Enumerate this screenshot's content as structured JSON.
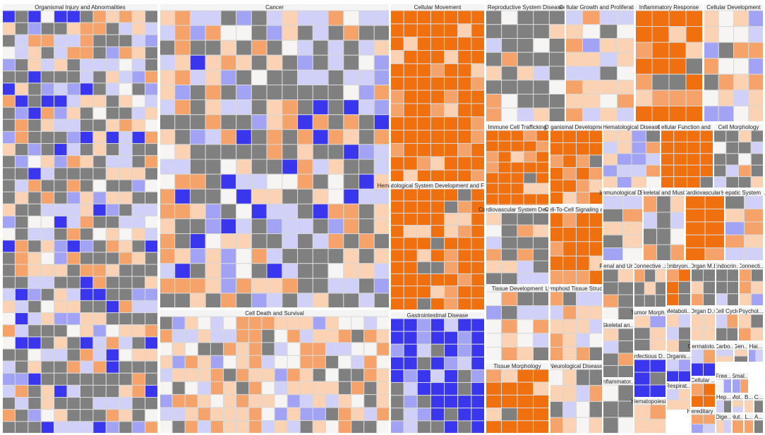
{
  "chart_data": {
    "type": "heatmap",
    "layout": "treemap",
    "colors": {
      "strong_up": "#f07010",
      "up": "#f5a36a",
      "weak_up": "#fbd2b4",
      "neutral": "#f7f5f3",
      "weak_down": "#d0d0f8",
      "down": "#a3a3f5",
      "strong_down": "#3a36ee",
      "no_prediction": "#808080"
    },
    "categories": [
      {
        "name": "Organismal Injury and Abnormalities",
        "count": 420,
        "mix": "mixed"
      },
      {
        "name": "Cancer",
        "count": 300,
        "mix": "mixed"
      },
      {
        "name": "Cellular Movement",
        "count": 90,
        "mix": "up"
      },
      {
        "name": "Reproductive System Disease",
        "count": 40,
        "mix": "gray"
      },
      {
        "name": "Cellular Growth and Proliferation",
        "count": 30,
        "mix": "light"
      },
      {
        "name": "Inflammatory Response",
        "count": 28,
        "mix": "up"
      },
      {
        "name": "Cellular Development",
        "count": 26,
        "mix": "light"
      },
      {
        "name": "Cell Death and Survival",
        "count": 160,
        "mix": "light"
      },
      {
        "name": "Hematological System Development and Func...",
        "count": 70,
        "mix": "up"
      },
      {
        "name": "Gastrointestinal Disease",
        "count": 60,
        "mix": "down"
      },
      {
        "name": "Immune Cell Trafficking",
        "count": 36,
        "mix": "up"
      },
      {
        "name": "Organismal Development",
        "count": 24,
        "mix": "up"
      },
      {
        "name": "Hematological Disease",
        "count": 20,
        "mix": "light"
      },
      {
        "name": "Cellular Function and ...",
        "count": 20,
        "mix": "up"
      },
      {
        "name": "Cell Morphology",
        "count": 18,
        "mix": "gray"
      },
      {
        "name": "Cardiovascular System Deve...",
        "count": 22,
        "mix": "gray"
      },
      {
        "name": "Cell-To-Cell Signaling a...",
        "count": 20,
        "mix": "up"
      },
      {
        "name": "Immunological D...",
        "count": 10,
        "mix": "light"
      },
      {
        "name": "Skeletal and Mus...",
        "count": 12,
        "mix": "gray"
      },
      {
        "name": "Cardiovascular ...",
        "count": 10,
        "mix": "up"
      },
      {
        "name": "Hepatic System ...",
        "count": 10,
        "mix": "light"
      },
      {
        "name": "Tissue Development",
        "count": 20,
        "mix": "light"
      },
      {
        "name": "Lymphoid Tissue Struc...",
        "count": 18,
        "mix": "light"
      },
      {
        "name": "Renal and Ur...",
        "count": 8,
        "mix": "gray"
      },
      {
        "name": "Connective ...",
        "count": 8,
        "mix": "gray"
      },
      {
        "name": "Embryon...",
        "count": 6,
        "mix": "up"
      },
      {
        "name": "Organ M...",
        "count": 6,
        "mix": "gray"
      },
      {
        "name": "Endocrin...",
        "count": 6,
        "mix": "gray"
      },
      {
        "name": "Connecti...",
        "count": 6,
        "mix": "light"
      },
      {
        "name": "Tumor Morph...",
        "count": 6,
        "mix": "light"
      },
      {
        "name": "Metaboli...",
        "count": 5,
        "mix": "mixed"
      },
      {
        "name": "Organ D...",
        "count": 4,
        "mix": "light"
      },
      {
        "name": "Cell Cycle",
        "count": 4,
        "mix": "gray"
      },
      {
        "name": "Psychol...",
        "count": 4,
        "mix": "light"
      },
      {
        "name": "Skeletal an...",
        "count": 8,
        "mix": "gray"
      },
      {
        "name": "Tissue Morphology",
        "count": 18,
        "mix": "up"
      },
      {
        "name": "Neurological Disease",
        "count": 16,
        "mix": "gray"
      },
      {
        "name": "Infectious D...",
        "count": 5,
        "mix": "down"
      },
      {
        "name": "Organis...",
        "count": 3,
        "mix": "down"
      },
      {
        "name": "Dermatolo...",
        "count": 4,
        "mix": "mixed"
      },
      {
        "name": "Carbo...",
        "count": 3,
        "mix": "light"
      },
      {
        "name": "Gen...",
        "count": 2,
        "mix": "light"
      },
      {
        "name": "Hai...",
        "count": 2,
        "mix": "light"
      },
      {
        "name": "Inflammator...",
        "count": 6,
        "mix": "gray"
      },
      {
        "name": "Cellular ...",
        "count": 3,
        "mix": "up"
      },
      {
        "name": "Free...",
        "count": 2,
        "mix": "light"
      },
      {
        "name": "Smal...",
        "count": 2,
        "mix": "light"
      },
      {
        "name": "Hematopoiesis",
        "count": 3,
        "mix": "light"
      },
      {
        "name": "Respirat...",
        "count": 3,
        "mix": "light"
      },
      {
        "name": "Hep...",
        "count": 2,
        "mix": "light"
      },
      {
        "name": "Mol...",
        "count": 2,
        "mix": "light"
      },
      {
        "name": "B...",
        "count": 1,
        "mix": "light"
      },
      {
        "name": "C...",
        "count": 1,
        "mix": "light"
      },
      {
        "name": "Hereditary ...",
        "count": 3,
        "mix": "light"
      },
      {
        "name": "Dige...",
        "count": 2,
        "mix": "light"
      },
      {
        "name": "Nut...",
        "count": 1,
        "mix": "light"
      },
      {
        "name": "L...",
        "count": 1,
        "mix": "light"
      },
      {
        "name": "A...",
        "count": 1,
        "mix": "light"
      }
    ]
  }
}
